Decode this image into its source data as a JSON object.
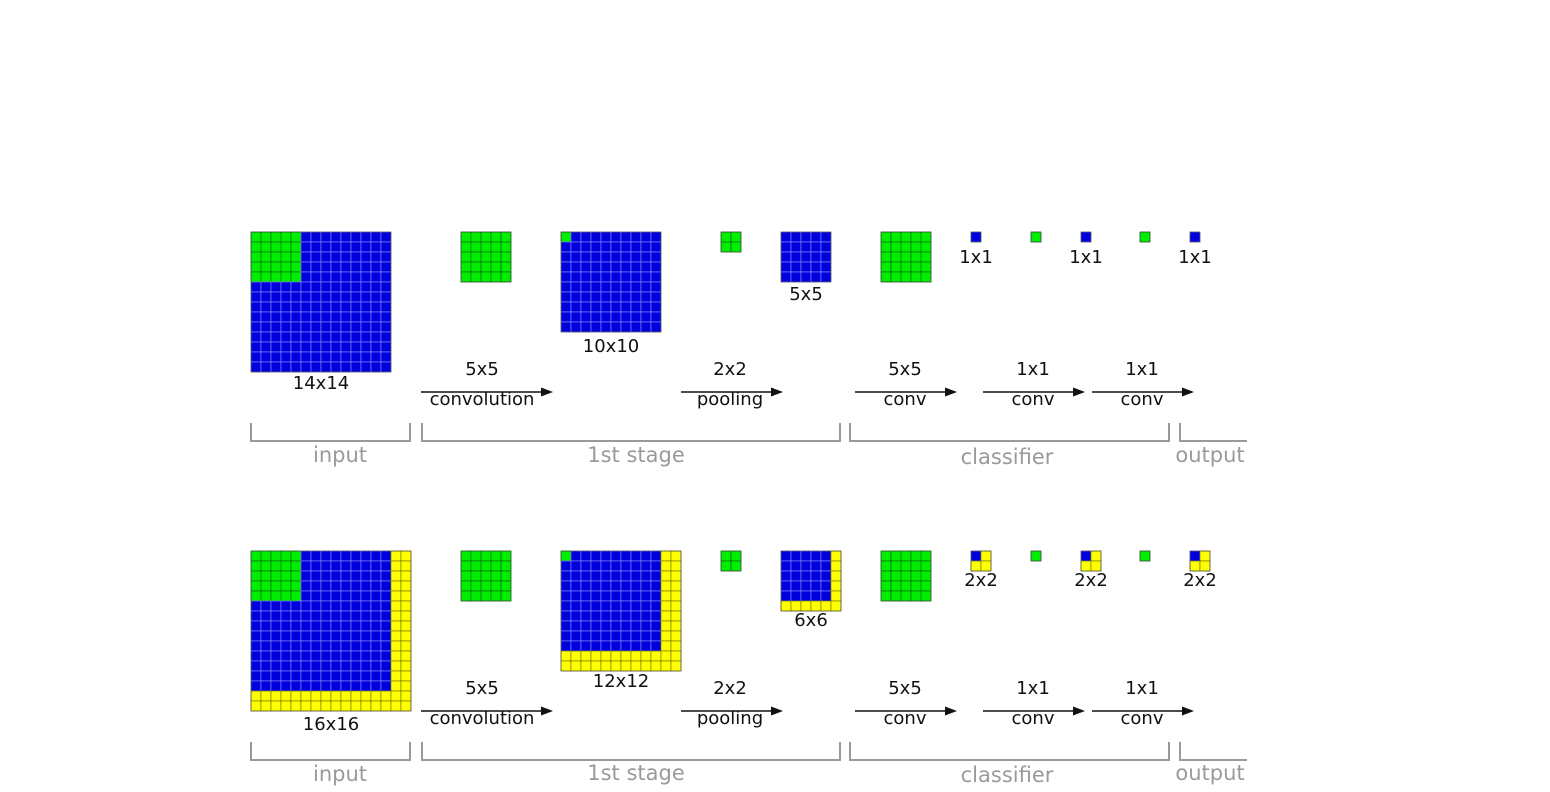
{
  "rows": [
    {
      "grids": [
        {
          "id": "input",
          "size": 14,
          "pad": 0,
          "patch": 5,
          "label": "14x14"
        },
        {
          "id": "kernel1",
          "size": 5,
          "pad": 0,
          "kind": "green"
        },
        {
          "id": "conv-out",
          "size": 10,
          "pad": 0,
          "patch": 1,
          "label": "10x10"
        },
        {
          "id": "pool-window",
          "size": 2,
          "pad": 0,
          "kind": "green"
        },
        {
          "id": "pooled",
          "size": 5,
          "pad": 0,
          "label": "5x5"
        },
        {
          "id": "kernel2",
          "size": 5,
          "pad": 0,
          "kind": "green"
        },
        {
          "id": "fc1",
          "size": 1,
          "pad": 0,
          "label": "1x1"
        },
        {
          "id": "kernel3",
          "size": 1,
          "pad": 0,
          "kind": "green"
        },
        {
          "id": "fc2",
          "size": 1,
          "pad": 0,
          "label": "1x1"
        },
        {
          "id": "kernel4",
          "size": 1,
          "pad": 0,
          "kind": "green"
        },
        {
          "id": "out",
          "size": 1,
          "pad": 0,
          "label": "1x1"
        }
      ],
      "ops": [
        {
          "top": "5x5",
          "bottom": "convolution"
        },
        {
          "top": "2x2",
          "bottom": "pooling"
        },
        {
          "top": "5x5",
          "bottom": "conv"
        },
        {
          "top": "1x1",
          "bottom": "conv"
        },
        {
          "top": "1x1",
          "bottom": "conv"
        }
      ],
      "stages": [
        "input",
        "1st stage",
        "classifier",
        "output"
      ]
    },
    {
      "grids": [
        {
          "id": "input",
          "size": 14,
          "pad": 2,
          "patch": 5,
          "label": "16x16"
        },
        {
          "id": "kernel1",
          "size": 5,
          "pad": 0,
          "kind": "green"
        },
        {
          "id": "conv-out",
          "size": 10,
          "pad": 2,
          "patch": 1,
          "label": "12x12"
        },
        {
          "id": "pool-window",
          "size": 2,
          "pad": 0,
          "kind": "green"
        },
        {
          "id": "pooled",
          "size": 5,
          "pad": 1,
          "label": "6x6"
        },
        {
          "id": "kernel2",
          "size": 5,
          "pad": 0,
          "kind": "green"
        },
        {
          "id": "fc1",
          "size": 1,
          "pad": 1,
          "label": "2x2"
        },
        {
          "id": "kernel3",
          "size": 1,
          "pad": 0,
          "kind": "green"
        },
        {
          "id": "fc2",
          "size": 1,
          "pad": 1,
          "label": "2x2"
        },
        {
          "id": "kernel4",
          "size": 1,
          "pad": 0,
          "kind": "green"
        },
        {
          "id": "out",
          "size": 1,
          "pad": 1,
          "label": "2x2"
        }
      ],
      "ops": [
        {
          "top": "5x5",
          "bottom": "convolution"
        },
        {
          "top": "2x2",
          "bottom": "pooling"
        },
        {
          "top": "5x5",
          "bottom": "conv"
        },
        {
          "top": "1x1",
          "bottom": "conv"
        },
        {
          "top": "1x1",
          "bottom": "conv"
        }
      ],
      "stages": [
        "input",
        "1st stage",
        "classifier",
        "output"
      ]
    }
  ],
  "colors": {
    "blue": "#0000dd",
    "green": "#00ee00",
    "yellow": "#ffff00",
    "stage_text": "#9a9a9a"
  }
}
